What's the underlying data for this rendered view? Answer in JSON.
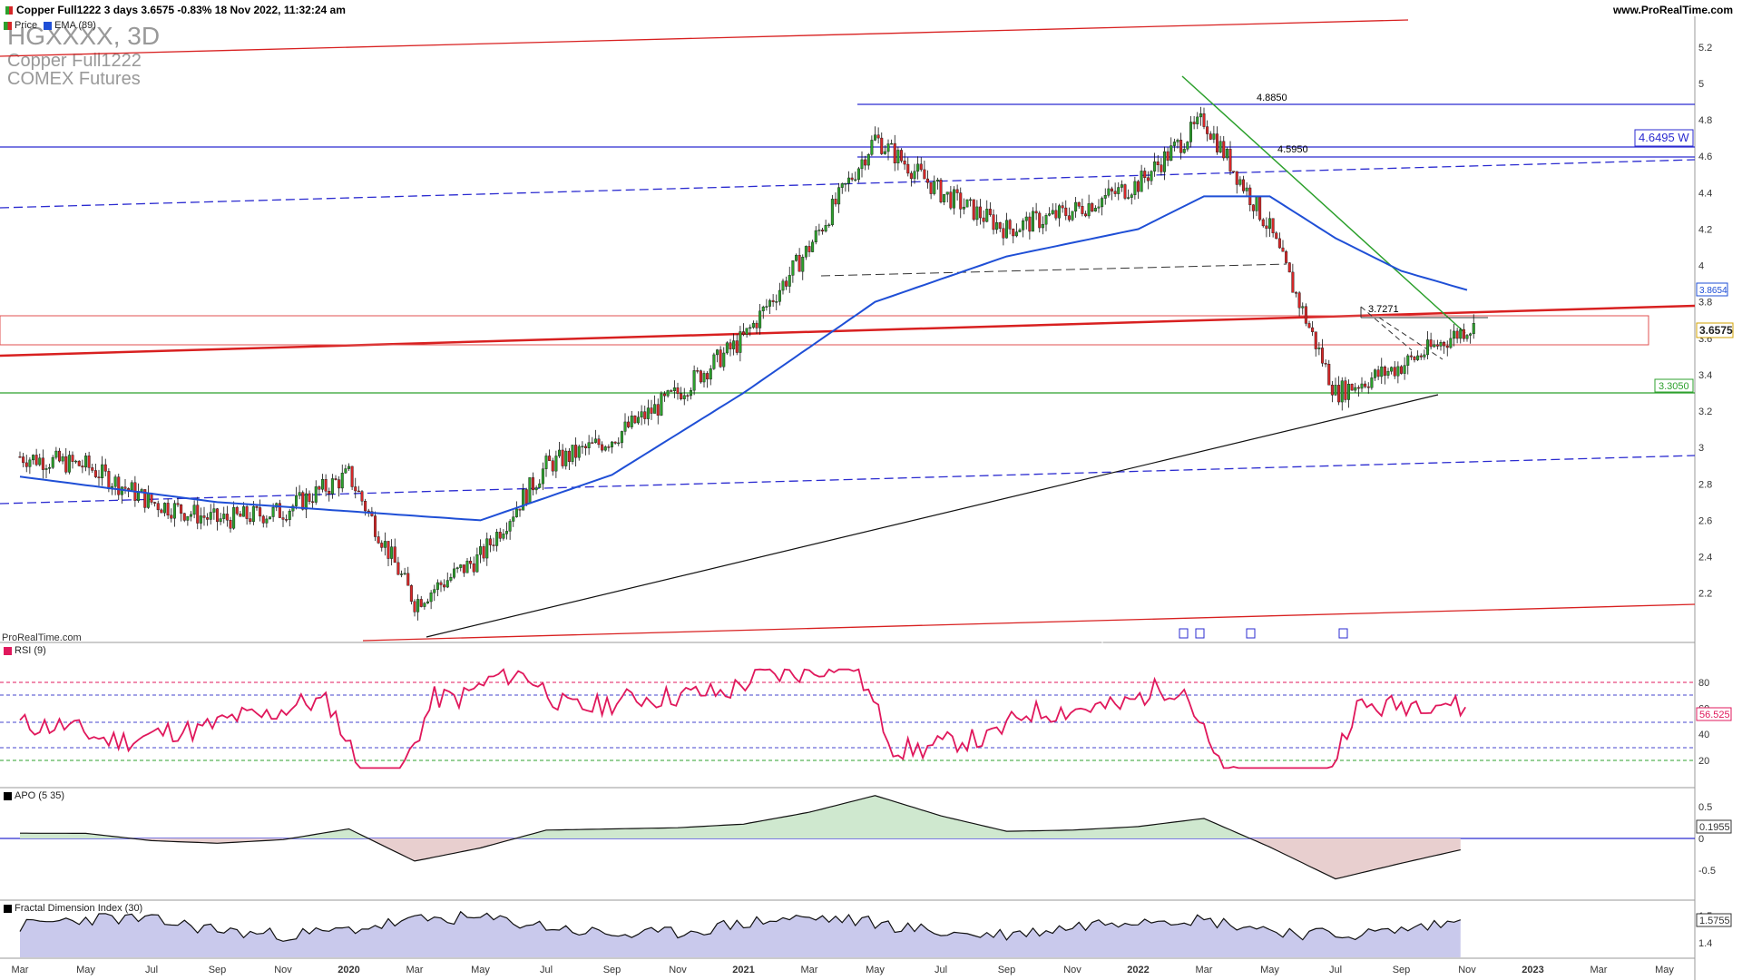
{
  "header": {
    "left": "Copper Full1222 3 days 3.6575 -0.83% 18 Nov 2022, 11:32:24 am",
    "right": "www.ProRealTime.com"
  },
  "ticker": {
    "symbol": "HGXXXX, 3D",
    "name": "Copper Full1222",
    "exchange": "COMEX Futures"
  },
  "legend": {
    "price": "Price",
    "ema": "EMA (89)"
  },
  "watermark": "ProRealTime.com",
  "colors": {
    "up": "#2ca02c",
    "down": "#d62728",
    "ema": "#1f4fd6",
    "rsi": "#e0185c",
    "resistance_blue": "#2b2bd0",
    "support_green": "#2ca02c",
    "channel_red": "#d82020"
  },
  "price_axis": {
    "ticks": [
      "5.2",
      "5",
      "4.8",
      "4.6",
      "4.4",
      "4.2",
      "4",
      "3.8",
      "3.6",
      "3.4",
      "3.2",
      "3",
      "2.8",
      "2.6",
      "2.4",
      "2.2"
    ],
    "ema_badge": "3.8654",
    "price_badge": "3.6575",
    "support_badge": "3.3050",
    "resistance_badge": "4.6495 W"
  },
  "annotations": {
    "high1": "4.8850",
    "high2": "4.5950",
    "low_level": "3.7271"
  },
  "x_axis": [
    "Mar",
    "May",
    "Jul",
    "Sep",
    "Nov",
    "2020",
    "Mar",
    "May",
    "Jul",
    "Sep",
    "Nov",
    "2021",
    "Mar",
    "May",
    "Jul",
    "Sep",
    "Nov",
    "2022",
    "Mar",
    "May",
    "Jul",
    "Sep",
    "Nov",
    "2023",
    "Mar",
    "May"
  ],
  "rsi": {
    "label": "RSI (9)",
    "ticks": [
      "80",
      "60",
      "40",
      "20"
    ],
    "value": "56.525"
  },
  "apo": {
    "label": "APO (5 35)",
    "ticks": [
      "0.5",
      "0",
      "-0.5"
    ],
    "value": "0.1955"
  },
  "fdi": {
    "label": "Fractal Dimension Index (30)",
    "ticks": [
      "1.5",
      "1.4"
    ],
    "value": "1.5755"
  },
  "chart_data": {
    "type": "candlestick",
    "title": "Copper Full1222 3 days",
    "price_range": [
      2.0,
      5.3
    ],
    "series": [
      {
        "name": "Price",
        "x": [
          "2019-03",
          "2019-05",
          "2019-07",
          "2019-09",
          "2019-11",
          "2020-01",
          "2020-03",
          "2020-05",
          "2020-07",
          "2020-09",
          "2020-11",
          "2021-01",
          "2021-03",
          "2021-05",
          "2021-07",
          "2021-09",
          "2021-11",
          "2022-01",
          "2022-03",
          "2022-05",
          "2022-07",
          "2022-09",
          "2022-11"
        ],
        "values": [
          2.95,
          2.9,
          2.7,
          2.6,
          2.65,
          2.85,
          2.15,
          2.4,
          2.9,
          3.05,
          3.3,
          3.6,
          4.1,
          4.7,
          4.4,
          4.2,
          4.3,
          4.45,
          4.8,
          4.2,
          3.3,
          3.45,
          3.6575
        ]
      },
      {
        "name": "EMA (89)",
        "x": [
          "2019-03",
          "2019-09",
          "2020-01",
          "2020-05",
          "2020-09",
          "2021-01",
          "2021-05",
          "2021-09",
          "2022-01",
          "2022-03",
          "2022-05",
          "2022-07",
          "2022-09",
          "2022-11"
        ],
        "values": [
          2.84,
          2.7,
          2.65,
          2.6,
          2.85,
          3.3,
          3.8,
          4.05,
          4.2,
          4.38,
          4.38,
          4.15,
          3.97,
          3.8654
        ]
      }
    ],
    "levels": {
      "support": 3.305,
      "resistance": 4.6495,
      "high1": 4.885,
      "high2": 4.595,
      "neckline": 3.7271
    }
  }
}
